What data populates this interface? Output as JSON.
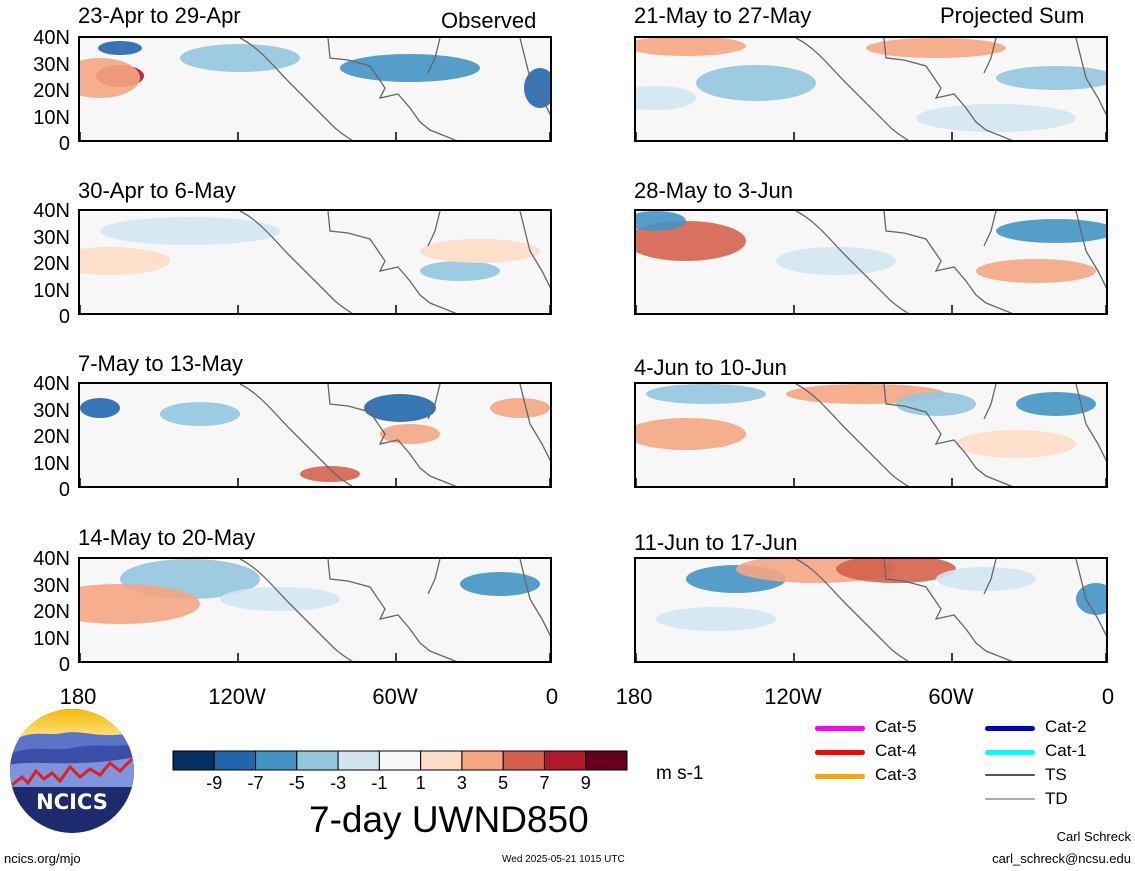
{
  "tags": {
    "observed": "Observed",
    "projected": "Projected Sum"
  },
  "panels_left": [
    "23-Apr to 29-Apr",
    "30-Apr to 6-May",
    "7-May to 13-May",
    "14-May to 20-May"
  ],
  "panels_right": [
    "21-May to 27-May",
    "28-May to 3-Jun",
    "4-Jun to 10-Jun",
    "11-Jun to 17-Jun"
  ],
  "lat_labels": [
    "40N",
    "30N",
    "20N",
    "10N",
    "0"
  ],
  "lon_labels": [
    "180",
    "120W",
    "60W",
    "0"
  ],
  "colorbar": {
    "labels": [
      "-9",
      "-7",
      "-5",
      "-3",
      "-1",
      "1",
      "3",
      "5",
      "7",
      "9"
    ],
    "colors": [
      "#053061",
      "#2166ac",
      "#4393c3",
      "#92c5de",
      "#d1e5f0",
      "#f7f7f7",
      "#fddbc7",
      "#f4a582",
      "#d6604d",
      "#b2182b",
      "#67001f"
    ],
    "units": "m s-1"
  },
  "title": "7-day UWND850",
  "storm_legend": [
    {
      "label": "Cat-5",
      "color": "#ff00ff"
    },
    {
      "label": "Cat-4",
      "color": "#ff0000"
    },
    {
      "label": "Cat-3",
      "color": "#ffa500"
    },
    {
      "label": "Cat-2",
      "color": "#0000cc"
    },
    {
      "label": "Cat-1",
      "color": "#00ffff"
    },
    {
      "label": "TS",
      "color": "#555555"
    },
    {
      "label": "TD",
      "color": "#aaaaaa"
    }
  ],
  "logo_text": "NCICS",
  "footer": {
    "url": "ncics.org/mjo",
    "timestamp": "Wed 2025-05-21 1015 UTC",
    "author": "Carl Schreck",
    "email": "carl_schreck@ncsu.edu"
  }
}
